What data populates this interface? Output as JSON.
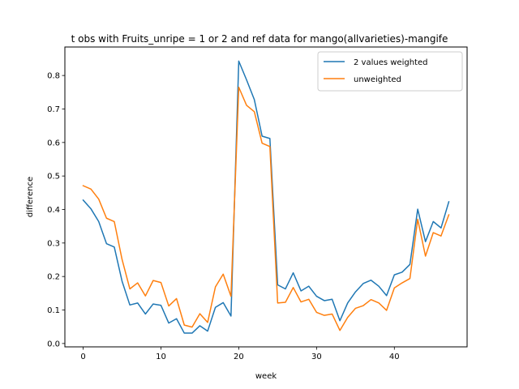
{
  "chart_data": {
    "type": "line",
    "title": "t obs with Fruits_unripe = 1 or 2 and ref data for mango(allvarieties)-mangife",
    "xlabel": "week",
    "ylabel": "difference",
    "xlim": [
      -2.35,
      49.35
    ],
    "ylim": [
      -0.01,
      0.885
    ],
    "xticks": [
      0,
      10,
      20,
      30,
      40
    ],
    "yticks": [
      0.0,
      0.1,
      0.2,
      0.3,
      0.4,
      0.5,
      0.6,
      0.7,
      0.8
    ],
    "legend_position": "upper right",
    "grid": false,
    "x": [
      0,
      1,
      2,
      3,
      4,
      5,
      6,
      7,
      8,
      9,
      10,
      11,
      12,
      13,
      14,
      15,
      16,
      17,
      18,
      19,
      20,
      21,
      22,
      23,
      24,
      25,
      26,
      27,
      28,
      29,
      30,
      31,
      32,
      33,
      34,
      35,
      36,
      37,
      38,
      39,
      40,
      41,
      42,
      43,
      44,
      45,
      46,
      47
    ],
    "series": [
      {
        "name": "2 values weighted",
        "color": "#1f77b4",
        "values": [
          0.428,
          0.402,
          0.364,
          0.298,
          0.288,
          0.186,
          0.115,
          0.121,
          0.088,
          0.118,
          0.114,
          0.061,
          0.074,
          0.031,
          0.031,
          0.053,
          0.037,
          0.108,
          0.122,
          0.082,
          0.843,
          0.787,
          0.728,
          0.619,
          0.612,
          0.175,
          0.163,
          0.211,
          0.157,
          0.171,
          0.141,
          0.128,
          0.132,
          0.068,
          0.121,
          0.154,
          0.179,
          0.189,
          0.171,
          0.143,
          0.205,
          0.213,
          0.236,
          0.401,
          0.304,
          0.364,
          0.345,
          0.423
        ]
      },
      {
        "name": "unweighted",
        "color": "#ff7f0e",
        "values": [
          0.471,
          0.461,
          0.431,
          0.374,
          0.364,
          0.251,
          0.163,
          0.181,
          0.142,
          0.188,
          0.182,
          0.112,
          0.134,
          0.055,
          0.049,
          0.089,
          0.063,
          0.169,
          0.207,
          0.141,
          0.765,
          0.711,
          0.692,
          0.598,
          0.588,
          0.121,
          0.123,
          0.167,
          0.124,
          0.132,
          0.093,
          0.084,
          0.088,
          0.039,
          0.078,
          0.105,
          0.113,
          0.131,
          0.121,
          0.099,
          0.166,
          0.181,
          0.194,
          0.371,
          0.261,
          0.331,
          0.321,
          0.384
        ]
      }
    ]
  }
}
